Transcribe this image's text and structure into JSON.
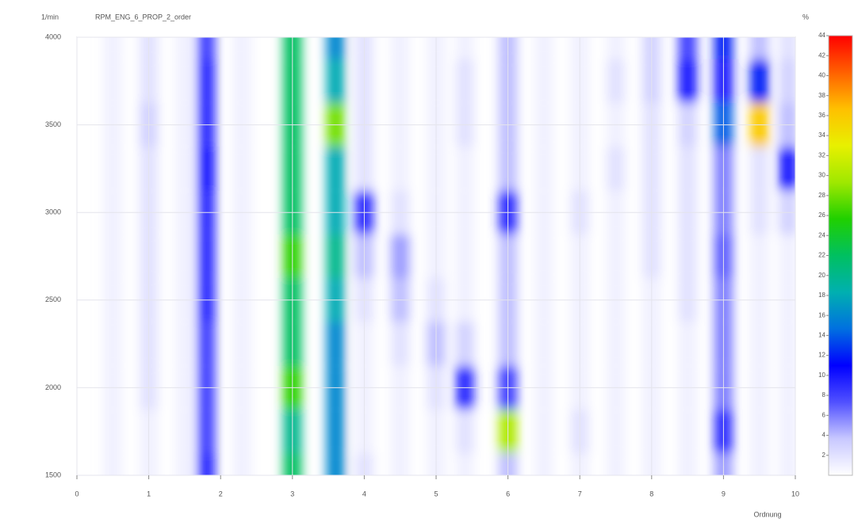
{
  "chart_data": {
    "type": "heatmap",
    "title": "RPM_ENG_6_PROP_2_order",
    "x_label": "Ordnung",
    "y_label": "1/min",
    "colorbar_label": "%",
    "x": [
      0.5,
      1,
      1.5,
      1.8,
      2.3,
      3,
      3.6,
      4,
      4.5,
      5,
      5.4,
      6,
      6.5,
      7,
      7.5,
      8,
      8.5,
      9,
      9.5,
      9.9
    ],
    "y": [
      1500,
      1750,
      2000,
      2250,
      2500,
      2750,
      3000,
      3250,
      3500,
      3750,
      4000
    ],
    "z": [
      [
        1,
        1,
        1,
        9,
        1,
        22,
        16,
        2,
        1,
        1,
        1,
        4,
        1,
        1,
        1,
        1,
        1,
        5,
        1,
        1
      ],
      [
        1,
        1,
        1,
        8,
        1,
        20,
        16,
        1,
        1,
        1,
        2,
        30,
        1,
        2,
        1,
        1,
        1,
        9,
        1,
        1
      ],
      [
        1,
        2,
        1,
        8,
        1,
        26,
        16,
        1,
        1,
        2,
        9,
        8,
        1,
        1,
        1,
        1,
        1,
        6,
        1,
        1
      ],
      [
        1,
        2,
        1,
        8,
        1,
        22,
        16,
        1,
        2,
        4,
        3,
        4,
        1,
        1,
        1,
        1,
        1,
        6,
        1,
        1
      ],
      [
        1,
        2,
        1,
        9,
        1,
        22,
        18,
        2,
        4,
        2,
        1,
        4,
        1,
        1,
        1,
        1,
        2,
        6,
        1,
        1
      ],
      [
        1,
        2,
        1,
        9,
        1,
        26,
        20,
        4,
        5,
        1,
        1,
        4,
        1,
        1,
        1,
        2,
        2,
        7,
        1,
        1
      ],
      [
        1,
        2,
        1,
        9,
        1,
        22,
        18,
        9,
        2,
        1,
        1,
        9,
        1,
        2,
        1,
        2,
        2,
        6,
        2,
        3
      ],
      [
        1,
        2,
        1,
        10,
        1,
        22,
        18,
        2,
        1,
        1,
        1,
        4,
        1,
        1,
        2,
        2,
        2,
        6,
        2,
        10
      ],
      [
        1,
        3,
        1,
        9,
        1,
        22,
        28,
        2,
        1,
        1,
        2,
        4,
        1,
        1,
        1,
        2,
        3,
        14,
        36,
        4
      ],
      [
        1,
        2,
        1,
        9,
        1,
        22,
        18,
        2,
        1,
        1,
        2,
        4,
        1,
        1,
        2,
        3,
        10,
        10,
        12,
        3
      ],
      [
        1,
        2,
        1,
        8,
        1,
        22,
        16,
        2,
        1,
        1,
        1,
        4,
        1,
        1,
        1,
        3,
        8,
        12,
        4,
        2
      ]
    ],
    "xlim": [
      0,
      10
    ],
    "xticks": [
      0,
      1,
      2,
      3,
      4,
      5,
      6,
      7,
      8,
      9,
      10
    ],
    "ylim": [
      1500,
      4000
    ],
    "yticks": [
      1500,
      2000,
      2500,
      3000,
      3500,
      4000
    ],
    "zlim": [
      0,
      44
    ],
    "zticks": [
      2,
      4,
      6,
      8,
      10,
      12,
      14,
      16,
      18,
      20,
      22,
      24,
      26,
      28,
      30,
      32,
      34,
      36,
      38,
      40,
      42,
      44
    ],
    "colormap": [
      "#ffffff",
      "#c8c8ff",
      "#5050ff",
      "#0000ff",
      "#0070e0",
      "#00b0b0",
      "#00c060",
      "#20d000",
      "#a0e800",
      "#e8f000",
      "#ffc000",
      "#ff6000",
      "#ff0000"
    ],
    "grid": true
  }
}
